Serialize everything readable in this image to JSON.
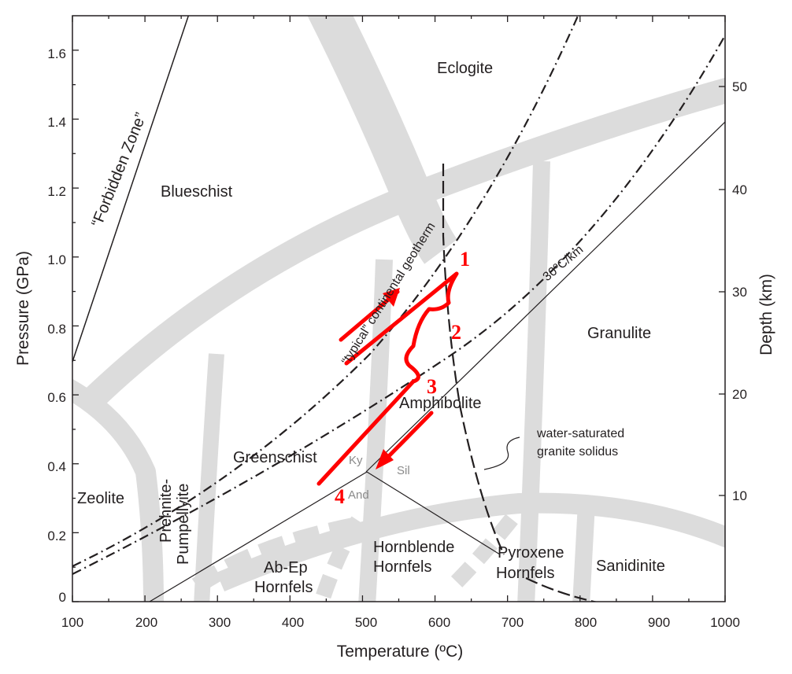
{
  "x_axis": {
    "label": "Temperature (ºC)",
    "range": [
      100,
      1000
    ],
    "ticks": [
      100,
      200,
      300,
      400,
      500,
      600,
      700,
      800,
      900,
      1000
    ]
  },
  "y_axis_left": {
    "label": "Pressure (GPa)",
    "range": [
      0,
      1.7
    ],
    "ticks": [
      "0",
      "0.2",
      "0.4",
      "0.6",
      "0.8",
      "1.0",
      "1.2",
      "1.4",
      "1.6"
    ]
  },
  "y_axis_right": {
    "label": "Depth (km)",
    "ticks": [
      "10",
      "20",
      "30",
      "40",
      "50"
    ]
  },
  "facies": {
    "eclogite": "Eclogite",
    "blueschist": "Blueschist",
    "granulite": "Granulite",
    "amphibolite": "Amphibolite",
    "greenschist": "Greenschist",
    "zeolite": "Zeolite",
    "prehnite_1": "Prehnite-",
    "prehnite_2": "Pumpellyite",
    "abep_1": "Ab-Ep",
    "abep_2": "Hornfels",
    "hornblende_1": "Hornblende",
    "hornblende_2": "Hornfels",
    "pyroxene_1": "Pyroxene",
    "pyroxene_2": "Hornfels",
    "sanidinite": "Sanidinite"
  },
  "aluminosilicates": {
    "kyanite": "Ky",
    "sillimanite": "Sil",
    "andalusite": "And"
  },
  "annotations": {
    "forbidden_zone": "“Forbidden Zone”",
    "continental_geotherm": "“typical” continental geotherm",
    "gradient_30": "30ºC/km",
    "solidus_1": "water-saturated",
    "solidus_2": "granite solidus"
  },
  "pt_path": {
    "color": "#ff0000",
    "labels": [
      "1",
      "2",
      "3",
      "4"
    ]
  }
}
